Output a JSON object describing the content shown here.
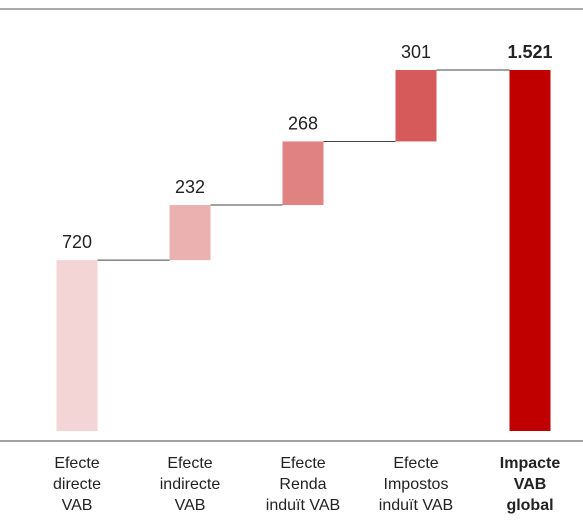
{
  "chart_data": {
    "type": "waterfall",
    "title": "",
    "xlabel": "",
    "ylabel": "",
    "grid": false,
    "ylim": [
      0,
      1521
    ],
    "categories": [
      [
        "Efecte",
        "directe",
        "VAB"
      ],
      [
        "Efecte",
        "indirecte",
        "VAB"
      ],
      [
        "Efecte",
        "Renda",
        "induït VAB"
      ],
      [
        "Efecte",
        "Impostos",
        "induït VAB"
      ],
      [
        "Impacte",
        "VAB",
        "global"
      ]
    ],
    "values": [
      720,
      232,
      268,
      301,
      1521
    ],
    "value_labels": [
      "720",
      "232",
      "268",
      "301",
      "1.521"
    ],
    "total_index": 4,
    "colors": [
      "#f3d5d5",
      "#ebb1b1",
      "#e08282",
      "#d75a5a",
      "#c00000"
    ]
  }
}
